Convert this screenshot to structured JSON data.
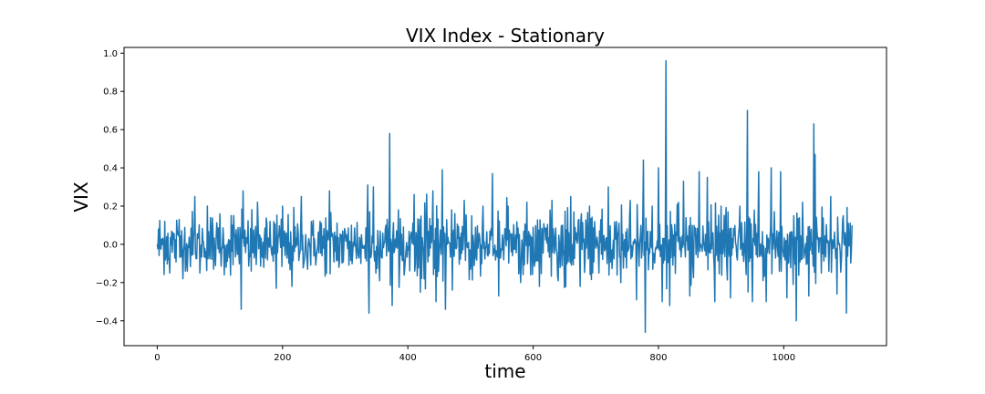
{
  "chart_data": {
    "type": "line",
    "title": "VIX Index - Stationary",
    "xlabel": "time",
    "ylabel": "VIX",
    "xlim": [
      -53,
      1164
    ],
    "ylim": [
      -0.53,
      1.03
    ],
    "xticks": [
      0,
      200,
      400,
      600,
      800,
      1000
    ],
    "yticks": [
      -0.4,
      -0.2,
      0.0,
      0.2,
      0.4,
      0.6,
      0.8,
      1.0
    ],
    "xtick_labels": [
      "0",
      "200",
      "400",
      "600",
      "800",
      "1000"
    ],
    "ytick_labels": [
      "−0.4",
      "−0.2",
      "0.0",
      "0.2",
      "0.4",
      "0.6",
      "0.8",
      "1.0"
    ],
    "grid": false,
    "series": [
      {
        "color": "#1f77b4",
        "n_points": 1110,
        "anchor_points": [
          [
            0,
            0.0
          ],
          [
            12,
            0.12
          ],
          [
            20,
            -0.15
          ],
          [
            35,
            0.13
          ],
          [
            45,
            -0.14
          ],
          [
            60,
            0.25
          ],
          [
            68,
            -0.15
          ],
          [
            80,
            0.2
          ],
          [
            90,
            -0.13
          ],
          [
            100,
            0.16
          ],
          [
            110,
            -0.12
          ],
          [
            120,
            0.1
          ],
          [
            134,
            -0.34
          ],
          [
            137,
            0.28
          ],
          [
            150,
            -0.14
          ],
          [
            160,
            0.22
          ],
          [
            170,
            -0.12
          ],
          [
            180,
            0.12
          ],
          [
            190,
            -0.23
          ],
          [
            200,
            0.2
          ],
          [
            215,
            -0.22
          ],
          [
            230,
            0.25
          ],
          [
            240,
            -0.13
          ],
          [
            260,
            0.12
          ],
          [
            275,
            0.28
          ],
          [
            290,
            -0.12
          ],
          [
            310,
            0.1
          ],
          [
            325,
            -0.1
          ],
          [
            336,
            0.31
          ],
          [
            338,
            -0.36
          ],
          [
            345,
            0.3
          ],
          [
            355,
            -0.19
          ],
          [
            365,
            0.1
          ],
          [
            371,
            0.58
          ],
          [
            375,
            -0.32
          ],
          [
            385,
            0.18
          ],
          [
            395,
            -0.13
          ],
          [
            410,
            0.26
          ],
          [
            420,
            -0.25
          ],
          [
            440,
            0.28
          ],
          [
            445,
            -0.3
          ],
          [
            455,
            0.39
          ],
          [
            460,
            -0.34
          ],
          [
            470,
            0.18
          ],
          [
            490,
            0.23
          ],
          [
            500,
            -0.13
          ],
          [
            520,
            0.2
          ],
          [
            535,
            0.37
          ],
          [
            545,
            -0.27
          ],
          [
            560,
            0.2
          ],
          [
            580,
            -0.2
          ],
          [
            590,
            0.22
          ],
          [
            610,
            -0.22
          ],
          [
            630,
            0.23
          ],
          [
            640,
            -0.19
          ],
          [
            660,
            0.25
          ],
          [
            675,
            -0.22
          ],
          [
            690,
            0.2
          ],
          [
            705,
            -0.15
          ],
          [
            720,
            0.3
          ],
          [
            740,
            -0.2
          ],
          [
            755,
            0.23
          ],
          [
            765,
            -0.29
          ],
          [
            776,
            0.44
          ],
          [
            779,
            -0.46
          ],
          [
            790,
            0.2
          ],
          [
            800,
            0.4
          ],
          [
            806,
            -0.3
          ],
          [
            812,
            0.96
          ],
          [
            818,
            -0.32
          ],
          [
            830,
            0.21
          ],
          [
            840,
            0.33
          ],
          [
            850,
            -0.27
          ],
          [
            865,
            0.38
          ],
          [
            878,
            0.35
          ],
          [
            890,
            -0.3
          ],
          [
            900,
            0.2
          ],
          [
            915,
            -0.28
          ],
          [
            930,
            0.2
          ],
          [
            942,
            0.7
          ],
          [
            950,
            -0.3
          ],
          [
            960,
            0.38
          ],
          [
            972,
            -0.3
          ],
          [
            980,
            0.4
          ],
          [
            995,
            0.38
          ],
          [
            1005,
            -0.28
          ],
          [
            1020,
            -0.4
          ],
          [
            1030,
            0.22
          ],
          [
            1040,
            -0.27
          ],
          [
            1048,
            0.63
          ],
          [
            1050,
            0.47
          ],
          [
            1060,
            -0.15
          ],
          [
            1075,
            0.25
          ],
          [
            1085,
            -0.26
          ],
          [
            1095,
            0.15
          ],
          [
            1100,
            -0.36
          ],
          [
            1109,
            0.1
          ]
        ]
      }
    ]
  }
}
